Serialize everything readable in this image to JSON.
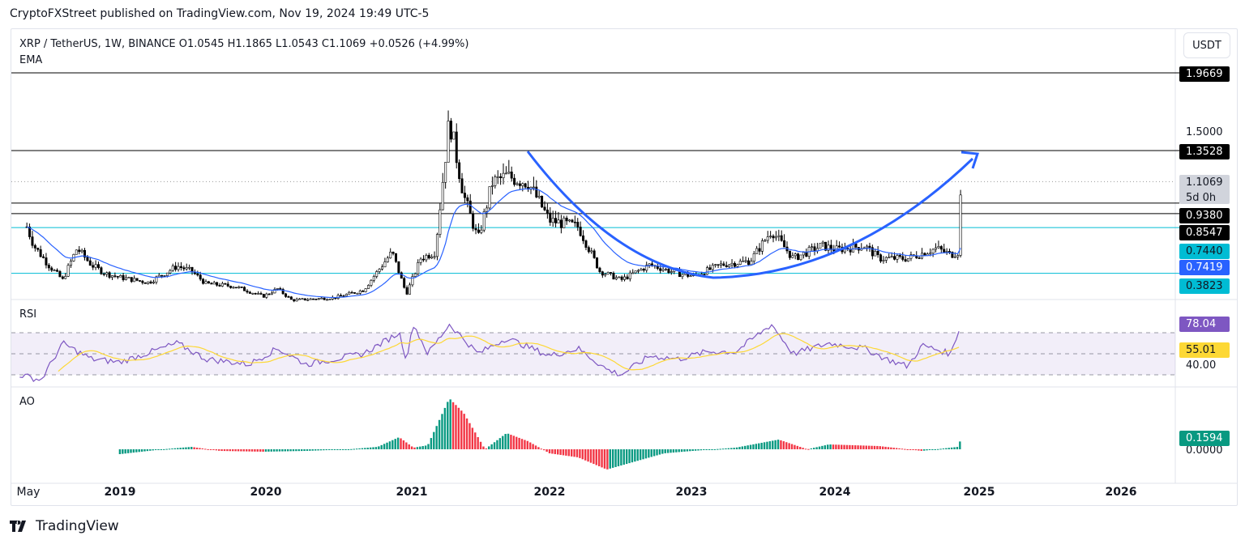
{
  "published": "CryptoFXStreet published on TradingView.com, Nov 19, 2024 19:49 UTC-5",
  "legend": "XRP / TetherUS, 1W, BINANCE  O1.0545  H1.1865  L1.0543  C1.1069  +0.0526 (+4.99%)",
  "ema_label": "EMA",
  "rsi_label": "RSI",
  "ao_label": "AO",
  "currency_button": "USDT",
  "footer": "TradingView",
  "countdown": "5d 0h",
  "colors": {
    "cyan": "#00bcd4",
    "ema": "#2962ff",
    "rsi": "#7e57c2",
    "rsi_ma": "#fdd835",
    "up": "#089981",
    "down": "#f23645"
  },
  "chart_data": [
    {
      "type": "candlestick",
      "title": "XRP / TetherUS 1W",
      "ylim": [
        0.188,
        2.306
      ],
      "scale": "linear",
      "yticks": [
        "1.5000"
      ],
      "xticks": [
        "May",
        "2019",
        "2020",
        "2021",
        "2022",
        "2023",
        "2024",
        "2025",
        "2026"
      ],
      "levels": [
        {
          "value": 1.9669,
          "label": "1.9669",
          "color": "#000"
        },
        {
          "value": 1.3528,
          "label": "1.3528",
          "color": "#000"
        },
        {
          "value": 0.938,
          "label": "0.9380",
          "color": "#000"
        },
        {
          "value": 0.8547,
          "label": "0.8547",
          "color": "#000"
        },
        {
          "value": 0.744,
          "label": "0.7440",
          "color": "#00bcd4"
        },
        {
          "value": 0.3823,
          "label": "0.3823",
          "color": "#00bcd4"
        }
      ],
      "last_price": {
        "value": 1.1069,
        "label": "1.1069"
      },
      "ema_last": {
        "value": 0.7419,
        "label": "0.7419"
      },
      "closes": [
        [
          2018.35,
          0.75
        ],
        [
          2018.4,
          0.6
        ],
        [
          2018.5,
          0.45
        ],
        [
          2018.6,
          0.33
        ],
        [
          2018.7,
          0.58
        ],
        [
          2018.8,
          0.45
        ],
        [
          2018.9,
          0.38
        ],
        [
          2019.0,
          0.35
        ],
        [
          2019.2,
          0.31
        ],
        [
          2019.4,
          0.44
        ],
        [
          2019.5,
          0.4
        ],
        [
          2019.6,
          0.3
        ],
        [
          2019.8,
          0.28
        ],
        [
          2020.0,
          0.2
        ],
        [
          2020.1,
          0.26
        ],
        [
          2020.2,
          0.17
        ],
        [
          2020.5,
          0.19
        ],
        [
          2020.7,
          0.25
        ],
        [
          2020.9,
          0.55
        ],
        [
          2021.0,
          0.22
        ],
        [
          2021.1,
          0.5
        ],
        [
          2021.2,
          0.55
        ],
        [
          2021.3,
          1.6
        ],
        [
          2021.4,
          1.0
        ],
        [
          2021.5,
          0.65
        ],
        [
          2021.6,
          1.1
        ],
        [
          2021.7,
          1.15
        ],
        [
          2021.85,
          1.1
        ],
        [
          2022.0,
          0.8
        ],
        [
          2022.2,
          0.75
        ],
        [
          2022.35,
          0.4
        ],
        [
          2022.5,
          0.33
        ],
        [
          2022.7,
          0.45
        ],
        [
          2022.9,
          0.38
        ],
        [
          2023.0,
          0.36
        ],
        [
          2023.2,
          0.45
        ],
        [
          2023.4,
          0.48
        ],
        [
          2023.55,
          0.72
        ],
        [
          2023.7,
          0.5
        ],
        [
          2023.9,
          0.6
        ],
        [
          2024.0,
          0.57
        ],
        [
          2024.2,
          0.6
        ],
        [
          2024.3,
          0.5
        ],
        [
          2024.5,
          0.5
        ],
        [
          2024.7,
          0.58
        ],
        [
          2024.8,
          0.53
        ],
        [
          2024.85,
          0.55
        ],
        [
          2024.87,
          1.0
        ],
        [
          2024.88,
          1.1069
        ]
      ]
    },
    {
      "type": "line",
      "title": "RSI",
      "ylim": [
        30,
        70
      ],
      "levels": [
        70,
        50,
        30
      ],
      "tick": "40.00",
      "last": {
        "value": 78.04,
        "label": "78.04"
      },
      "ma_last": {
        "value": 55.01,
        "label": "55.01"
      },
      "values": [
        [
          2018.3,
          30
        ],
        [
          2018.45,
          25
        ],
        [
          2018.6,
          60
        ],
        [
          2018.8,
          45
        ],
        [
          2019.0,
          42
        ],
        [
          2019.4,
          60
        ],
        [
          2019.6,
          45
        ],
        [
          2019.9,
          40
        ],
        [
          2020.1,
          55
        ],
        [
          2020.3,
          40
        ],
        [
          2020.7,
          50
        ],
        [
          2020.95,
          70
        ],
        [
          2021.0,
          45
        ],
        [
          2021.05,
          78
        ],
        [
          2021.15,
          50
        ],
        [
          2021.3,
          78
        ],
        [
          2021.5,
          50
        ],
        [
          2021.7,
          65
        ],
        [
          2022.0,
          48
        ],
        [
          2022.2,
          55
        ],
        [
          2022.4,
          35
        ],
        [
          2022.5,
          30
        ],
        [
          2022.7,
          48
        ],
        [
          2022.9,
          45
        ],
        [
          2023.1,
          52
        ],
        [
          2023.3,
          52
        ],
        [
          2023.55,
          78
        ],
        [
          2023.7,
          50
        ],
        [
          2023.95,
          60
        ],
        [
          2024.2,
          55
        ],
        [
          2024.35,
          45
        ],
        [
          2024.5,
          38
        ],
        [
          2024.6,
          58
        ],
        [
          2024.8,
          50
        ],
        [
          2024.87,
          78.04
        ]
      ]
    },
    {
      "type": "bar",
      "title": "AO",
      "tick": "0.0000",
      "last": {
        "value": 0.1594,
        "label": "0.1594"
      },
      "values": [
        [
          2019.0,
          -0.06
        ],
        [
          2019.3,
          0.0
        ],
        [
          2019.5,
          0.03
        ],
        [
          2019.7,
          -0.02
        ],
        [
          2020.0,
          -0.03
        ],
        [
          2020.3,
          -0.02
        ],
        [
          2020.6,
          0.0
        ],
        [
          2020.8,
          0.03
        ],
        [
          2020.95,
          0.15
        ],
        [
          2021.05,
          0.02
        ],
        [
          2021.15,
          0.05
        ],
        [
          2021.3,
          0.63
        ],
        [
          2021.4,
          0.45
        ],
        [
          2021.55,
          0.0
        ],
        [
          2021.7,
          0.2
        ],
        [
          2021.85,
          0.1
        ],
        [
          2022.0,
          -0.05
        ],
        [
          2022.2,
          -0.1
        ],
        [
          2022.4,
          -0.25
        ],
        [
          2022.6,
          -0.15
        ],
        [
          2022.8,
          -0.05
        ],
        [
          2023.0,
          -0.02
        ],
        [
          2023.3,
          0.02
        ],
        [
          2023.6,
          0.12
        ],
        [
          2023.8,
          0.0
        ],
        [
          2023.95,
          0.06
        ],
        [
          2024.3,
          0.04
        ],
        [
          2024.6,
          -0.02
        ],
        [
          2024.85,
          0.03
        ],
        [
          2024.88,
          0.1594
        ]
      ]
    }
  ]
}
